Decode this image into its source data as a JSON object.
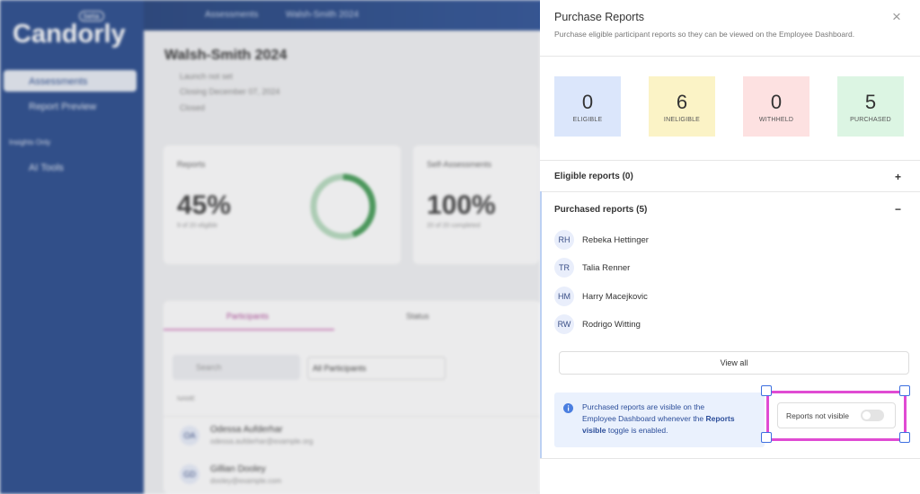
{
  "background": {
    "logo": "Candorly",
    "logo_badge": "beta",
    "nav": [
      "Assessments",
      "Report Preview"
    ],
    "nav_section": "Insights Only",
    "nav_extra": "AI Tools",
    "breadcrumb": [
      "Assessments",
      "Walsh-Smith 2024"
    ],
    "title": "Walsh-Smith 2024",
    "meta": [
      "Launch not set",
      "Closing December 07, 2024",
      "Closed"
    ],
    "cards": [
      {
        "title": "Reports",
        "value": "45%",
        "note": "9 of 20 eligible"
      },
      {
        "title": "Self-Assessments",
        "value": "100%",
        "note": "20 of 20 completed"
      }
    ],
    "tabs": [
      "Participants",
      "Status"
    ],
    "search": "Search",
    "filter": "All Participants",
    "column": "NAME",
    "rows": [
      {
        "initials": "OA",
        "name": "Odessa Aufderhar",
        "email": "odessa.aufderhar@example.org"
      },
      {
        "initials": "GD",
        "name": "Gillian Dooley",
        "email": "dooley@example.com"
      }
    ]
  },
  "panel": {
    "title": "Purchase Reports",
    "close": "×",
    "subtitle": "Purchase eligible participant reports so they can be viewed on the Employee Dashboard.",
    "stats": [
      {
        "value": 0,
        "label": "ELIGIBLE"
      },
      {
        "value": 6,
        "label": "INELIGIBLE"
      },
      {
        "value": 0,
        "label": "WITHHELD"
      },
      {
        "value": 5,
        "label": "PURCHASED"
      }
    ],
    "eligible": {
      "title": "Eligible reports (0)",
      "toggle": "+"
    },
    "purchased": {
      "title": "Purchased reports (5)",
      "toggle": "−",
      "people": [
        {
          "initials": "RH",
          "name": "Rebeka Hettinger"
        },
        {
          "initials": "TR",
          "name": "Talia Renner"
        },
        {
          "initials": "HM",
          "name": "Harry Macejkovic"
        },
        {
          "initials": "RW",
          "name": "Rodrigo Witting"
        }
      ],
      "view_all": "View all"
    },
    "info": {
      "text_before": "Purchased reports are visible on the Employee Dashboard whenever the ",
      "text_bold": "Reports visible",
      "text_after": " toggle is enabled."
    },
    "visibility_toggle": "Reports not visible"
  }
}
